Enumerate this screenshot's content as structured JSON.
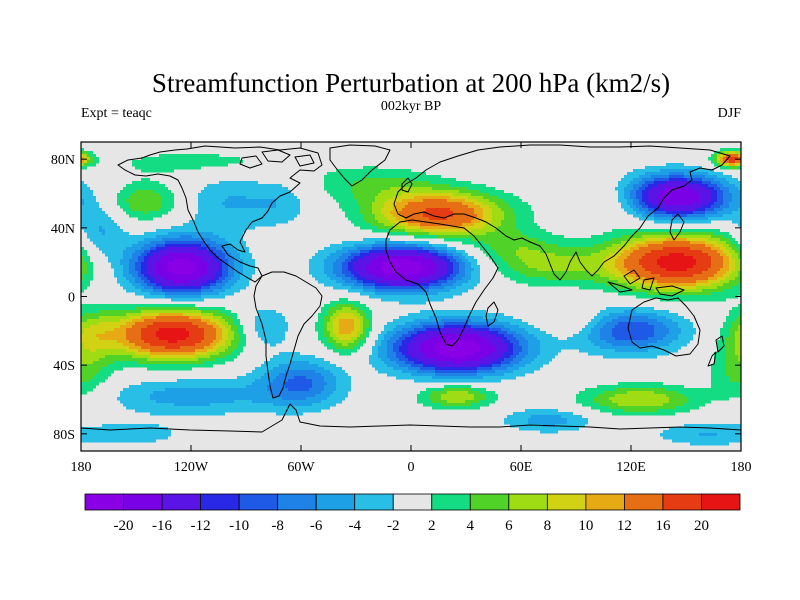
{
  "title": "Streamfunction Perturbation at 200 hPa (km2/s)",
  "left_label": "Expt = teaqc",
  "center_label": "002kyr BP",
  "right_label": "DJF",
  "map": {
    "projection": "cylindrical-equidistant",
    "lon_range": [
      -180,
      180
    ],
    "lat_range": [
      -90,
      90
    ],
    "background_color": "#e6e6e6",
    "coastline_color": "#000000"
  },
  "x_ticks": [
    {
      "value": -180,
      "label": "180"
    },
    {
      "value": -120,
      "label": "120W"
    },
    {
      "value": -60,
      "label": "60W"
    },
    {
      "value": 0,
      "label": "0"
    },
    {
      "value": 60,
      "label": "60E"
    },
    {
      "value": 120,
      "label": "120E"
    },
    {
      "value": 180,
      "label": "180"
    }
  ],
  "y_ticks": [
    {
      "value": 80,
      "label": "80N"
    },
    {
      "value": 40,
      "label": "40N"
    },
    {
      "value": 0,
      "label": "0"
    },
    {
      "value": -40,
      "label": "40S"
    },
    {
      "value": -80,
      "label": "80S"
    }
  ],
  "colorbar": {
    "colors": [
      "#8a00e6",
      "#7a00e6",
      "#5a14e6",
      "#2828e6",
      "#1e5ae6",
      "#1e82e6",
      "#1ea0e6",
      "#28bee6",
      "#e6e6e6",
      "#14dc82",
      "#50d228",
      "#a0dc14",
      "#d2d214",
      "#e6aa14",
      "#e66e14",
      "#e63c14",
      "#e61414"
    ],
    "labels": [
      "-20",
      "-16",
      "-12",
      "-10",
      "-8",
      "-6",
      "-4",
      "-2",
      "2",
      "4",
      "6",
      "8",
      "10",
      "12",
      "16",
      "20"
    ]
  },
  "field_features": [
    {
      "lon": -170,
      "lat": 35,
      "amp": -5,
      "slon": 10,
      "slat": 14
    },
    {
      "lon": -125,
      "lat": 17,
      "amp": -22,
      "slon": 18,
      "slat": 11
    },
    {
      "lon": -145,
      "lat": 55,
      "amp": 6,
      "slon": 14,
      "slat": 8
    },
    {
      "lon": -100,
      "lat": 55,
      "amp": -4,
      "slon": 18,
      "slat": 12
    },
    {
      "lon": -70,
      "lat": 55,
      "amp": -3,
      "slon": 12,
      "slat": 10
    },
    {
      "lon": -115,
      "lat": 78,
      "amp": 3,
      "slon": 40,
      "slat": 6
    },
    {
      "lon": -20,
      "lat": 65,
      "amp": 4,
      "slon": 25,
      "slat": 8
    },
    {
      "lon": 15,
      "lat": 48,
      "amp": 17,
      "slon": 24,
      "slat": 9
    },
    {
      "lon": -5,
      "lat": 17,
      "amp": -23,
      "slon": 23,
      "slat": 9
    },
    {
      "lon": 55,
      "lat": 30,
      "amp": 4,
      "slon": 18,
      "slat": 7
    },
    {
      "lon": 75,
      "lat": 18,
      "amp": 6,
      "slon": 24,
      "slat": 8
    },
    {
      "lon": 145,
      "lat": 20,
      "amp": 22,
      "slon": 24,
      "slat": 11
    },
    {
      "lon": 110,
      "lat": 55,
      "amp": 3,
      "slon": 20,
      "slat": 8
    },
    {
      "lon": 145,
      "lat": 58,
      "amp": -20,
      "slon": 19,
      "slat": 9
    },
    {
      "lon": 175,
      "lat": 80,
      "amp": 18,
      "slon": 6,
      "slat": 3
    },
    {
      "lon": -130,
      "lat": -22,
      "amp": 22,
      "slon": 22,
      "slat": 10
    },
    {
      "lon": -175,
      "lat": -22,
      "amp": 6,
      "slon": 10,
      "slat": 10
    },
    {
      "lon": -80,
      "lat": -18,
      "amp": -5,
      "slon": 10,
      "slat": 9
    },
    {
      "lon": -35,
      "lat": -18,
      "amp": 12,
      "slon": 9,
      "slat": 10
    },
    {
      "lon": -120,
      "lat": -58,
      "amp": -5,
      "slon": 35,
      "slat": 8
    },
    {
      "lon": -60,
      "lat": -50,
      "amp": -8,
      "slon": 16,
      "slat": 10
    },
    {
      "lon": 25,
      "lat": -30,
      "amp": -23,
      "slon": 24,
      "slat": 10
    },
    {
      "lon": 25,
      "lat": -58,
      "amp": 8,
      "slon": 14,
      "slat": 5
    },
    {
      "lon": 120,
      "lat": -20,
      "amp": -10,
      "slon": 20,
      "slat": 9
    },
    {
      "lon": 90,
      "lat": -15,
      "amp": 3,
      "slon": 12,
      "slat": 6
    },
    {
      "lon": 125,
      "lat": -60,
      "amp": 8,
      "slon": 22,
      "slat": 6
    },
    {
      "lon": 180,
      "lat": -45,
      "amp": 5,
      "slon": 12,
      "slat": 12
    },
    {
      "lon": 75,
      "lat": -72,
      "amp": -5,
      "slon": 18,
      "slat": 5
    },
    {
      "lon": -150,
      "lat": -80,
      "amp": -3,
      "slon": 20,
      "slat": 5
    },
    {
      "lon": 160,
      "lat": -80,
      "amp": -4,
      "slon": 20,
      "slat": 5
    }
  ]
}
